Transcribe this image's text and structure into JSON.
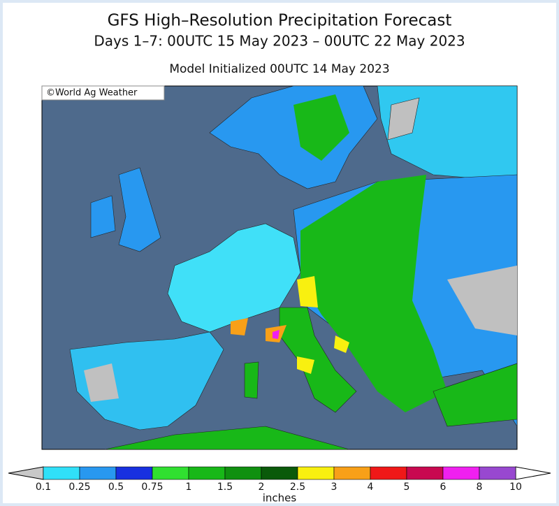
{
  "header": {
    "title": "GFS High–Resolution Precipitation Forecast",
    "subtitle": "Days 1–7: 00UTC 15 May 2023 – 00UTC 22 May 2023",
    "init": "Model Initialized 00UTC 14 May 2023"
  },
  "map": {
    "credit": "©World Ag Weather"
  },
  "legend": {
    "unit": "inches",
    "labels": [
      "0.1",
      "0.25",
      "0.5",
      "0.75",
      "1",
      "1.5",
      "2",
      "2.5",
      "3",
      "4",
      "5",
      "6",
      "8",
      "10"
    ],
    "colors": [
      "#30e0f8",
      "#2898f0",
      "#1830e0",
      "#30e030",
      "#18b818",
      "#109010",
      "#0a5a0a",
      "#f8f010",
      "#f8a018",
      "#f01818",
      "#c80850",
      "#f020f0",
      "#9848d0"
    ],
    "below_color": "#c8c8c8",
    "above_color": "#ffffff"
  }
}
